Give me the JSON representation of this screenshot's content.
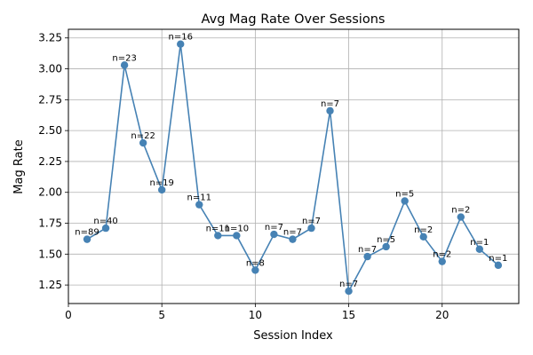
{
  "chart_data": {
    "type": "line",
    "title": "Avg Mag Rate Over Sessions",
    "xlabel": "Session Index",
    "ylabel": "Mag Rate",
    "xlim": [
      0,
      24.1
    ],
    "ylim": [
      1.1,
      3.32
    ],
    "xticks": [
      0,
      5,
      10,
      15,
      20
    ],
    "yticks": [
      1.25,
      1.5,
      1.75,
      2.0,
      2.25,
      2.5,
      2.75,
      3.0,
      3.25
    ],
    "ytick_labels": [
      "1.25",
      "1.50",
      "1.75",
      "2.00",
      "2.25",
      "2.50",
      "2.75",
      "3.00",
      "3.25"
    ],
    "grid": true,
    "color": "#4682b4",
    "series": [
      {
        "x": [
          1,
          2,
          3,
          4,
          5,
          6,
          7,
          8,
          9,
          10,
          11,
          12,
          13,
          14,
          15,
          16,
          17,
          18,
          19,
          20,
          21,
          22,
          23
        ],
        "values": [
          1.62,
          1.71,
          3.03,
          2.4,
          2.02,
          3.2,
          1.9,
          1.65,
          1.65,
          1.37,
          1.66,
          1.62,
          1.71,
          2.66,
          1.2,
          1.48,
          1.56,
          1.93,
          1.64,
          1.44,
          1.8,
          1.54,
          1.41
        ],
        "labels": [
          "n=89",
          "n=40",
          "n=23",
          "n=22",
          "n=19",
          "n=16",
          "n=11",
          "n=11",
          "n=10",
          "n=8",
          "n=7",
          "n=7",
          "n=7",
          "n=7",
          "n=7",
          "n=7",
          "n=5",
          "n=5",
          "n=2",
          "n=2",
          "n=2",
          "n=1",
          "n=1"
        ]
      }
    ]
  }
}
